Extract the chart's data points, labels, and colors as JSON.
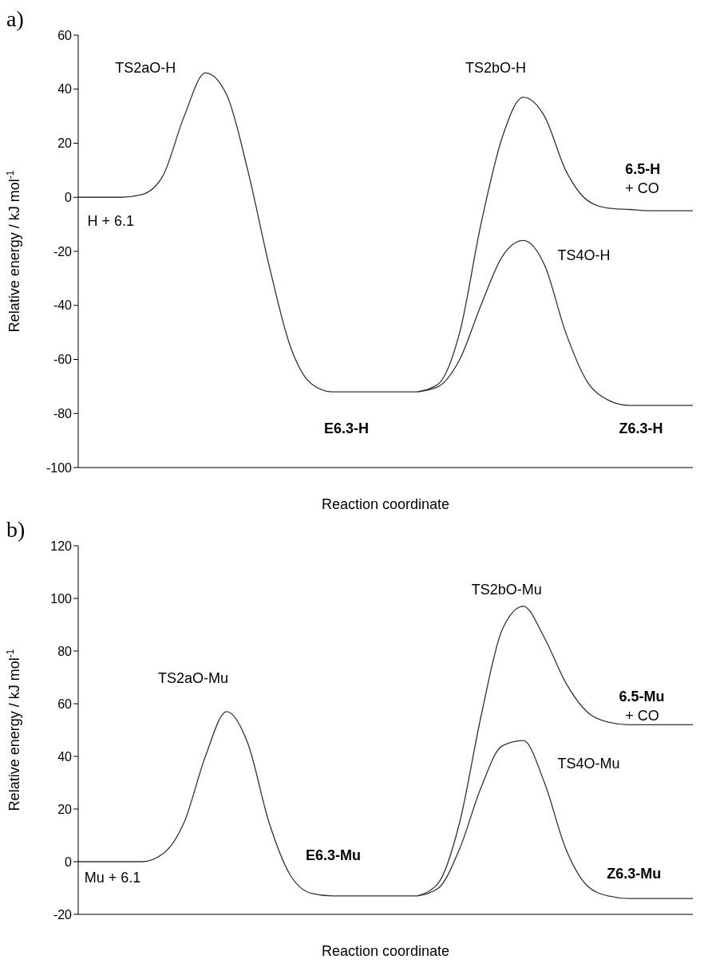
{
  "chart_data": [
    {
      "type": "line",
      "title": "a)",
      "xlabel": "Reaction coordinate",
      "ylabel": "Relative energy / kJ mol$^{-1}$",
      "ylim": [
        -100,
        60
      ],
      "yticks": [
        -100,
        -80,
        -60,
        -40,
        -20,
        0,
        20,
        40,
        60
      ],
      "categories": [
        null,
        null,
        null,
        null,
        null,
        null,
        null,
        null,
        null,
        null,
        null,
        null,
        null,
        null,
        null,
        null,
        null,
        null,
        null,
        null,
        null,
        null,
        null,
        null,
        null,
        null,
        null,
        null,
        null,
        null
      ],
      "series": [
        {
          "color": "#333333",
          "values": [
            0,
            0,
            0,
            1,
            8,
            30,
            46,
            38,
            10,
            -25,
            -55,
            -69,
            -72,
            -72,
            -72,
            -72,
            -72,
            null,
            null,
            null,
            null,
            null,
            null,
            null,
            null,
            null,
            null,
            null,
            null,
            null
          ]
        },
        {
          "color": "#333333",
          "values": [
            null,
            null,
            null,
            null,
            null,
            null,
            null,
            null,
            null,
            null,
            null,
            null,
            null,
            null,
            null,
            null,
            -72,
            -69,
            -50,
            -10,
            22,
            37,
            30,
            10,
            -1,
            -4,
            -4.5,
            -5,
            -5,
            -5
          ]
        },
        {
          "color": "#333333",
          "values": [
            null,
            null,
            null,
            null,
            null,
            null,
            null,
            null,
            null,
            null,
            null,
            null,
            null,
            null,
            null,
            null,
            -72,
            -70,
            -60,
            -40,
            -22,
            -16,
            -25,
            -50,
            -68,
            -75,
            -77,
            -77,
            -77,
            -77
          ]
        }
      ],
      "annotations": [
        "TS2aO-H",
        "TS2bO-H",
        "6.5-H",
        "+ CO",
        "H + 6.1",
        "TS4O-H",
        "E6.3-H",
        "Z6.3-H"
      ]
    },
    {
      "type": "line",
      "title": "b)",
      "xlabel": "Reaction coordinate",
      "ylabel": "Relative energy / kJ mol$^{-1}$",
      "ylim": [
        -20,
        120
      ],
      "yticks": [
        -20,
        0,
        20,
        40,
        60,
        80,
        100,
        120
      ],
      "categories": [
        null,
        null,
        null,
        null,
        null,
        null,
        null,
        null,
        null,
        null,
        null,
        null,
        null,
        null,
        null,
        null,
        null,
        null,
        null,
        null,
        null,
        null,
        null,
        null,
        null,
        null,
        null,
        null,
        null,
        null
      ],
      "series": [
        {
          "color": "#333333",
          "values": [
            0,
            0,
            0,
            0,
            3,
            15,
            40,
            57,
            45,
            15,
            -5,
            -12,
            -13,
            -13,
            -13,
            -13,
            -13,
            null,
            null,
            null,
            null,
            null,
            null,
            null,
            null,
            null,
            null,
            null,
            null,
            null
          ]
        },
        {
          "color": "#333333",
          "values": [
            null,
            null,
            null,
            null,
            null,
            null,
            null,
            null,
            null,
            null,
            null,
            null,
            null,
            null,
            null,
            null,
            -13,
            -8,
            15,
            55,
            88,
            97,
            85,
            68,
            57,
            53,
            52,
            52,
            52,
            52
          ]
        },
        {
          "color": "#333333",
          "values": [
            null,
            null,
            null,
            null,
            null,
            null,
            null,
            null,
            null,
            null,
            null,
            null,
            null,
            null,
            null,
            null,
            -13,
            -10,
            5,
            28,
            44,
            46,
            30,
            5,
            -9,
            -13,
            -14,
            -14,
            -14,
            -14
          ]
        }
      ],
      "annotations": [
        "TS2aO-Mu",
        "TS2bO-Mu",
        "6.5-Mu",
        "+ CO",
        "Mu + 6.1",
        "TS4O-Mu",
        "E6.3-Mu",
        "Z6.3-Mu"
      ]
    }
  ]
}
